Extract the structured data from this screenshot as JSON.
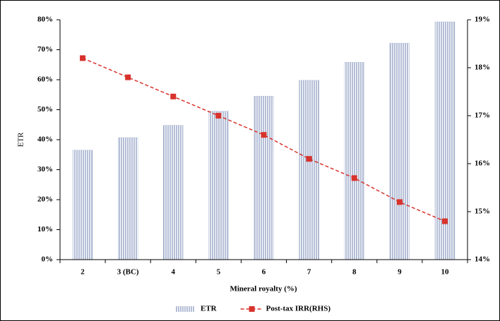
{
  "chart_data": {
    "type": "bar",
    "x_label": "Mineral royalty (%)",
    "y_label": "ETR",
    "categories": [
      "2",
      "3 (BC)",
      "4",
      "5",
      "6",
      "7",
      "8",
      "9",
      "10"
    ],
    "series": [
      {
        "name": "ETR",
        "type": "bar",
        "color": "#8294bc",
        "values": [
          36.5,
          40.7,
          44.8,
          49.5,
          54.5,
          59.8,
          65.8,
          72.2,
          79.3
        ]
      },
      {
        "name": "Post-tax IRR(RHS)",
        "type": "line",
        "axis": "y2",
        "color": "#d8322c",
        "values": [
          18.2,
          17.8,
          17.4,
          17.0,
          16.6,
          16.1,
          15.7,
          15.2,
          14.8
        ]
      }
    ],
    "ylim": [
      0,
      80
    ],
    "yticks": [
      {
        "value": 0,
        "label": "0%"
      },
      {
        "value": 10,
        "label": "10%"
      },
      {
        "value": 20,
        "label": "20%"
      },
      {
        "value": 30,
        "label": "30%"
      },
      {
        "value": 40,
        "label": "40%"
      },
      {
        "value": 50,
        "label": "50%"
      },
      {
        "value": 60,
        "label": "60%"
      },
      {
        "value": 70,
        "label": "70%"
      },
      {
        "value": 80,
        "label": "80%"
      }
    ],
    "y2lim": [
      14,
      19
    ],
    "y2ticks": [
      {
        "value": 14,
        "label": "14%"
      },
      {
        "value": 15,
        "label": "15%"
      },
      {
        "value": 16,
        "label": "16%"
      },
      {
        "value": 17,
        "label": "17%"
      },
      {
        "value": 18,
        "label": "18%"
      },
      {
        "value": 19,
        "label": "19%"
      }
    ],
    "grid": false,
    "legend": "bottom"
  }
}
